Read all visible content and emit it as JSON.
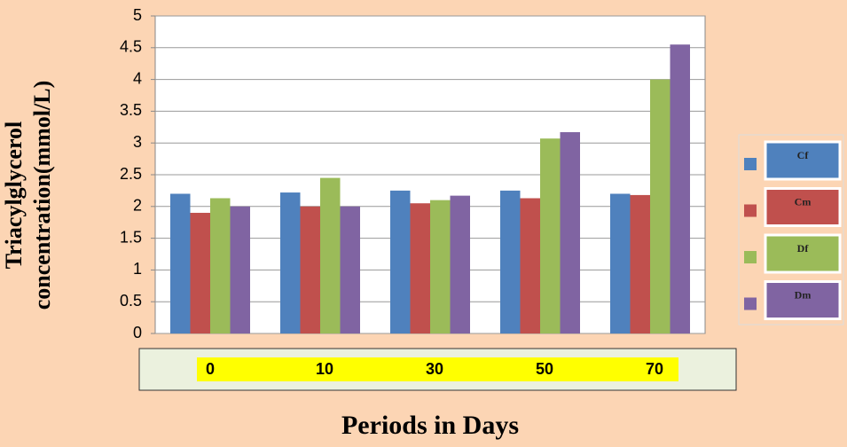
{
  "chart_data": {
    "type": "bar",
    "ylabel": "Triacylglycerol concentration(mmol/L)",
    "xlabel": "Periods in Days",
    "categories": [
      "0",
      "10",
      "30",
      "50",
      "70"
    ],
    "series": [
      {
        "name": "Cf",
        "color": "#4f81bd",
        "values": [
          2.2,
          2.22,
          2.25,
          2.25,
          2.2
        ]
      },
      {
        "name": "Cm",
        "color": "#c0504d",
        "values": [
          1.9,
          2.0,
          2.05,
          2.13,
          2.18
        ]
      },
      {
        "name": "Df",
        "color": "#9bbb59",
        "values": [
          2.13,
          2.45,
          2.1,
          3.07,
          4.0
        ]
      },
      {
        "name": "Dm",
        "color": "#8064a2",
        "values": [
          2.0,
          2.0,
          2.17,
          3.17,
          4.55
        ]
      }
    ],
    "ylim": [
      0,
      5
    ],
    "yticks": [
      0,
      0.5,
      1,
      1.5,
      2,
      2.5,
      3,
      3.5,
      4,
      4.5,
      5
    ],
    "grid": true,
    "legend": "right"
  }
}
